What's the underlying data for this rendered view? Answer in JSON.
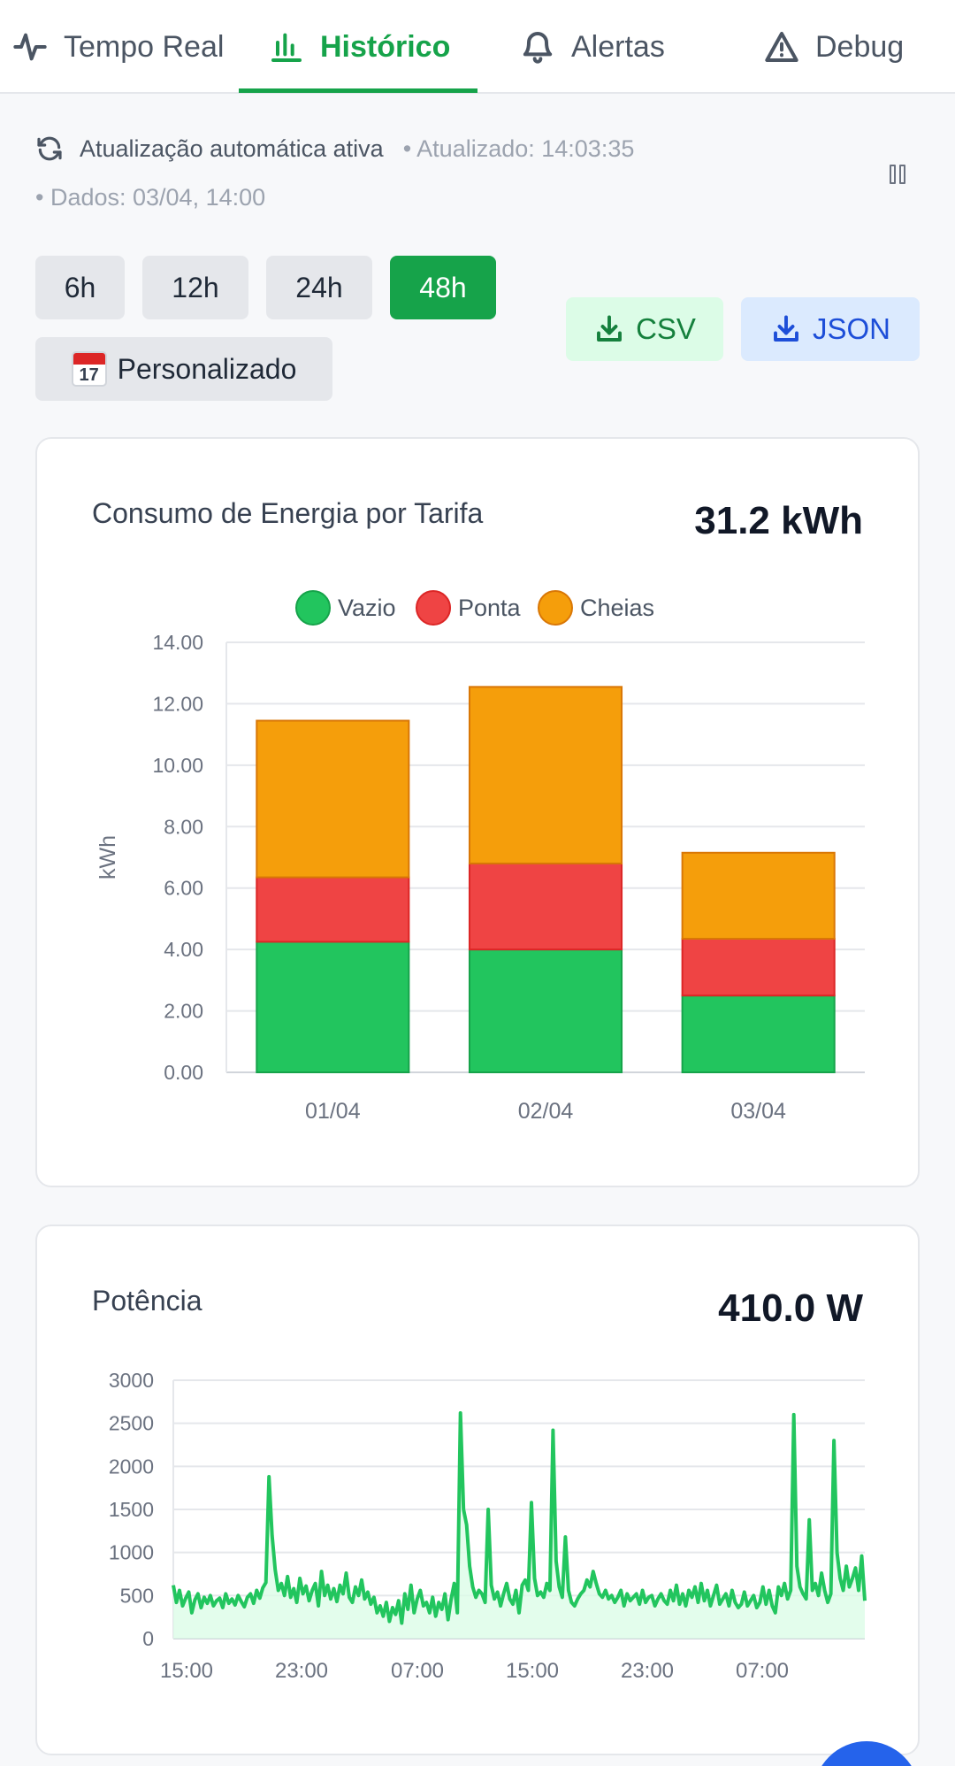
{
  "tabs": [
    {
      "label": "Tempo Real",
      "icon": "activity-icon",
      "active": false
    },
    {
      "label": "Histórico",
      "icon": "bar-chart-icon",
      "active": true
    },
    {
      "label": "Alertas",
      "icon": "bell-icon",
      "active": false
    },
    {
      "label": "Debug",
      "icon": "warning-triangle-icon",
      "active": false
    }
  ],
  "status": {
    "auto_update": "Atualização automática ativa",
    "updated": "• Atualizado: 14:03:35",
    "data_time": "• Dados: 03/04, 14:00"
  },
  "ranges": {
    "r6": "6h",
    "r12": "12h",
    "r24": "24h",
    "r48": "48h",
    "selected": "48h",
    "custom": "Personalizado",
    "custom_icon_day": "17"
  },
  "export": {
    "csv": "CSV",
    "json": "JSON"
  },
  "energy_card": {
    "title": "Consumo de Energia por Tarifa",
    "total": "31.2 kWh"
  },
  "power_card": {
    "title": "Potência",
    "current": "410.0 W"
  },
  "colors": {
    "accent": "#16a34a",
    "vazio": "#22c55e",
    "ponta": "#ef4444",
    "cheias": "#f59e0b"
  },
  "chart_data": [
    {
      "type": "bar",
      "stacked": true,
      "categories": [
        "01/04",
        "02/04",
        "03/04"
      ],
      "series": [
        {
          "name": "Vazio",
          "values": [
            4.25,
            4.0,
            2.5
          ]
        },
        {
          "name": "Ponta",
          "values": [
            2.1,
            2.8,
            1.85
          ]
        },
        {
          "name": "Cheias",
          "values": [
            5.1,
            5.75,
            2.8
          ]
        }
      ],
      "ylabel": "kWh",
      "ylim": [
        0,
        14
      ],
      "yticks": [
        "0.00",
        "2.00",
        "4.00",
        "6.00",
        "8.00",
        "10.00",
        "12.00",
        "14.00"
      ],
      "legend": "top",
      "grid": true
    },
    {
      "type": "area",
      "ylim": [
        0,
        3000
      ],
      "yticks": [
        "0",
        "500",
        "1000",
        "1500",
        "2000",
        "2500",
        "3000"
      ],
      "xticks": [
        "15:00",
        "23:00",
        "07:00",
        "15:00",
        "23:00",
        "07:00"
      ],
      "grid": true,
      "values": [
        620,
        420,
        560,
        380,
        470,
        540,
        300,
        450,
        520,
        360,
        480,
        410,
        500,
        380,
        440,
        470,
        360,
        520,
        410,
        460,
        390,
        500,
        430,
        370,
        480,
        520,
        410,
        560,
        470,
        590,
        650,
        1880,
        1200,
        800,
        560,
        640,
        500,
        720,
        480,
        580,
        420,
        700,
        520,
        610,
        440,
        560,
        640,
        380,
        780,
        500,
        620,
        460,
        580,
        430,
        620,
        520,
        760,
        480,
        420,
        600,
        500,
        680,
        460,
        540,
        400,
        480,
        300,
        380,
        260,
        420,
        200,
        360,
        280,
        440,
        180,
        520,
        340,
        620,
        300,
        460,
        560,
        380,
        420,
        300,
        480,
        260,
        420,
        340,
        520,
        220,
        460,
        640,
        300,
        2620,
        1500,
        1320,
        840,
        600,
        480,
        560,
        520,
        420,
        1500,
        620,
        460,
        540,
        380,
        520,
        640,
        460,
        400,
        560,
        300,
        620,
        680,
        560,
        1580,
        700,
        500,
        540,
        480,
        640,
        560,
        2420,
        900,
        600,
        480,
        1180,
        560,
        420,
        380,
        460,
        520,
        560,
        680,
        600,
        780,
        640,
        520,
        480,
        560,
        460,
        500,
        420,
        480,
        560,
        380,
        520,
        440,
        480,
        520,
        400,
        560,
        420,
        480,
        500,
        380,
        460,
        520,
        440,
        400,
        560,
        440,
        620,
        400,
        520,
        380,
        560,
        480,
        600,
        420,
        640,
        440,
        560,
        380,
        500,
        620,
        400,
        460,
        520,
        380,
        560,
        420,
        360,
        400,
        540,
        380,
        440,
        500,
        360,
        420,
        600,
        400,
        560,
        380,
        300,
        600,
        500,
        640,
        460,
        560,
        2600,
        840,
        600,
        520,
        460,
        1380,
        560,
        640,
        500,
        760,
        560,
        420,
        520,
        2300,
        1000,
        700,
        560,
        840,
        600,
        700,
        820,
        560,
        960,
        440
      ]
    }
  ]
}
